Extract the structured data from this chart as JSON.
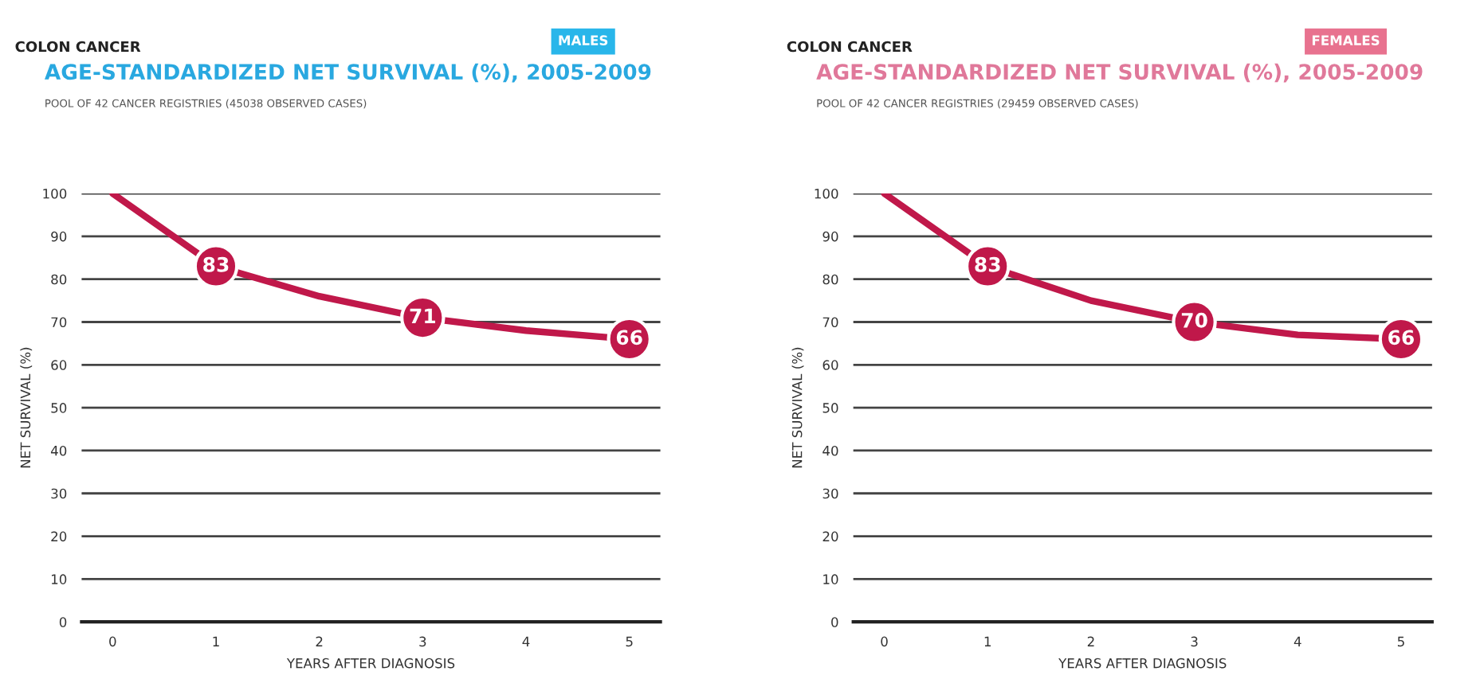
{
  "chart_data": [
    {
      "type": "line",
      "title": "AGE-STANDARDIZED NET SURVIVAL (%), 2005-2009",
      "subtitle": "POOL OF 42 CANCER REGISTRIES (45038 OBSERVED CASES)",
      "annotations": [
        "COLON CANCER",
        "MALES"
      ],
      "xlabel": "YEARS AFTER DIAGNOSIS",
      "ylabel": "NET SURVIVAL (%)",
      "x": [
        0,
        1,
        2,
        3,
        4,
        5
      ],
      "series": [
        {
          "color": "#c0184a",
          "values": [
            100,
            83,
            76,
            71,
            68,
            66
          ],
          "value_labels": [
            null,
            "83",
            null,
            "71",
            null,
            "66"
          ]
        }
      ],
      "xlim": [
        -0.3,
        5.3
      ],
      "xticks": [
        0,
        1,
        2,
        3,
        4,
        5
      ],
      "ylim": [
        0,
        100
      ],
      "yticks": [
        0,
        10,
        20,
        30,
        40,
        50,
        60,
        70,
        80,
        90,
        100
      ],
      "grid": "y"
    },
    {
      "type": "line",
      "title": "AGE-STANDARDIZED NET SURVIVAL (%), 2005-2009",
      "subtitle": "POOL OF 42 CANCER REGISTRIES (29459 OBSERVED CASES)",
      "annotations": [
        "COLON CANCER",
        "FEMALES"
      ],
      "xlabel": "YEARS AFTER DIAGNOSIS",
      "ylabel": "NET SURVIVAL (%)",
      "x": [
        0,
        1,
        2,
        3,
        4,
        5
      ],
      "series": [
        {
          "color": "#c0184a",
          "values": [
            100,
            83,
            75,
            70,
            67,
            66
          ],
          "value_labels": [
            null,
            "83",
            null,
            "70",
            null,
            "66"
          ]
        }
      ],
      "xlim": [
        -0.3,
        5.3
      ],
      "xticks": [
        0,
        1,
        2,
        3,
        4,
        5
      ],
      "ylim": [
        0,
        100
      ],
      "yticks": [
        0,
        10,
        20,
        30,
        40,
        50,
        60,
        70,
        80,
        90,
        100
      ],
      "grid": "y"
    }
  ]
}
